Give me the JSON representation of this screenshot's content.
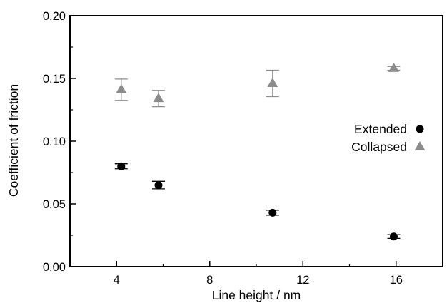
{
  "chart_data": {
    "type": "scatter",
    "title": "",
    "xlabel": "Line height / nm",
    "ylabel": "Coefficient of friction",
    "xlim": [
      2,
      18
    ],
    "ylim": [
      0,
      0.2
    ],
    "x_ticks": [
      4,
      8,
      12,
      16
    ],
    "x_tick_labels": [
      "4",
      "8",
      "12",
      "16"
    ],
    "x_minor_ticks": [
      6,
      10,
      14
    ],
    "y_ticks": [
      0,
      0.05,
      0.1,
      0.15,
      0.2
    ],
    "y_tick_labels": [
      "0.00",
      "0.05",
      "0.10",
      "0.15",
      "0.20"
    ],
    "y_minor_ticks": [
      0.025,
      0.075,
      0.125,
      0.175
    ],
    "grid": false,
    "legend_position": "right",
    "series": [
      {
        "name": "Extended",
        "marker": "circle",
        "color": "#000000",
        "points": [
          {
            "x": 4.2,
            "y": 0.08,
            "err": 0.002
          },
          {
            "x": 5.8,
            "y": 0.065,
            "err": 0.003
          },
          {
            "x": 10.7,
            "y": 0.043,
            "err": 0.002
          },
          {
            "x": 15.9,
            "y": 0.024,
            "err": 0.0015
          }
        ]
      },
      {
        "name": "Collapsed",
        "marker": "triangle",
        "color": "#8c8c8c",
        "points": [
          {
            "x": 4.2,
            "y": 0.141,
            "err": 0.0085
          },
          {
            "x": 5.8,
            "y": 0.134,
            "err": 0.0065
          },
          {
            "x": 10.7,
            "y": 0.146,
            "err": 0.0105
          },
          {
            "x": 15.9,
            "y": 0.158,
            "err": 0.0015
          }
        ]
      }
    ]
  }
}
